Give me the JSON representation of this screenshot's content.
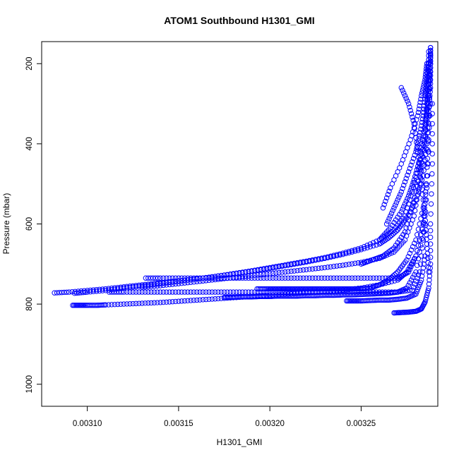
{
  "chart_data": {
    "type": "scatter",
    "title": "ATOM1 Southbound H1301_GMI",
    "xlabel": "H1301_GMI",
    "ylabel": "Pressure (mbar)",
    "xlim": [
      0.003075,
      0.003292
    ],
    "ylim": [
      1055,
      145
    ],
    "y_reversed": true,
    "x_ticks": [
      "0.00310",
      "0.00315",
      "0.00320",
      "0.00325"
    ],
    "x_tick_values": [
      0.0031,
      0.00315,
      0.0032,
      0.00325
    ],
    "y_ticks": [
      "200",
      "400",
      "600",
      "800",
      "1000"
    ],
    "y_tick_values": [
      200,
      400,
      600,
      800,
      1000
    ],
    "marker": "open-circle",
    "color": "#0000ff",
    "grid": false,
    "legend": "none",
    "series": [
      {
        "x": [
          0.003082,
          0.00309,
          0.0031,
          0.00311,
          0.00312,
          0.00313,
          0.00314,
          0.00315,
          0.00316,
          0.00317,
          0.00318,
          0.00319,
          0.0032,
          0.00321,
          0.00322,
          0.00323,
          0.00324,
          0.00325,
          0.00326,
          0.003265,
          0.00327,
          0.003275,
          0.00328,
          0.003284,
          0.003286,
          0.003287,
          0.003288,
          0.003288,
          0.003288
        ],
        "y": [
          772,
          770,
          766,
          762,
          757,
          752,
          747,
          742,
          737,
          731,
          725,
          718,
          711,
          703,
          695,
          686,
          676,
          664,
          650,
          635,
          615,
          585,
          540,
          480,
          400,
          320,
          260,
          200,
          160
        ]
      },
      {
        "x": [
          0.003093,
          0.0031,
          0.00311,
          0.00312,
          0.00313,
          0.00314,
          0.00315,
          0.00316,
          0.00317,
          0.00318,
          0.00319,
          0.0032,
          0.00321,
          0.00322,
          0.00323,
          0.00324,
          0.00325,
          0.00326,
          0.003268,
          0.003274,
          0.003278,
          0.003282,
          0.003285,
          0.003286,
          0.003287,
          0.003287
        ],
        "y": [
          773,
          770,
          766,
          760,
          755,
          749,
          743,
          737,
          731,
          724,
          717,
          709,
          701,
          693,
          684,
          673,
          660,
          640,
          615,
          580,
          520,
          450,
          380,
          300,
          230,
          170
        ]
      },
      {
        "x": [
          0.00313,
          0.00314,
          0.00315,
          0.00316,
          0.00317,
          0.00318,
          0.00319,
          0.0032,
          0.00321,
          0.00322,
          0.00323,
          0.00324,
          0.00325,
          0.00326,
          0.003268,
          0.003274,
          0.003279,
          0.003282,
          0.003285,
          0.003286,
          0.003287
        ],
        "y": [
          758,
          754,
          749,
          744,
          739,
          734,
          729,
          724,
          719,
          714,
          709,
          703,
          696,
          686,
          670,
          640,
          580,
          500,
          400,
          300,
          200
        ]
      },
      {
        "x": [
          0.003132,
          0.00314,
          0.00315,
          0.00316,
          0.00317,
          0.00318,
          0.00319,
          0.0032,
          0.00321,
          0.00322,
          0.00323,
          0.00324,
          0.00325,
          0.00326,
          0.00327,
          0.003276,
          0.00328,
          0.003284,
          0.003286,
          0.003287,
          0.003288
        ],
        "y": [
          735,
          735,
          735,
          735,
          735,
          735,
          735,
          735,
          735,
          735,
          735,
          735,
          735,
          735,
          735,
          720,
          680,
          600,
          480,
          350,
          220
        ]
      },
      {
        "x": [
          0.003092,
          0.003096,
          0.0031,
          0.003105,
          0.00311,
          0.00312,
          0.00313,
          0.00314,
          0.00315,
          0.00316,
          0.00317,
          0.00318,
          0.00319,
          0.0032,
          0.00321,
          0.00322,
          0.00323,
          0.00324,
          0.00325,
          0.00326,
          0.00327,
          0.003275,
          0.00328,
          0.003284,
          0.003286,
          0.003288
        ],
        "y": [
          803,
          803,
          803,
          803,
          802,
          800,
          798,
          796,
          793,
          790,
          787,
          784,
          781,
          778,
          775,
          772,
          769,
          765,
          760,
          752,
          740,
          720,
          680,
          600,
          480,
          300
        ]
      },
      {
        "x": [
          0.003112,
          0.00312,
          0.00313,
          0.00314,
          0.00315,
          0.00316,
          0.00317,
          0.00318,
          0.00319,
          0.0032,
          0.00321,
          0.00322,
          0.00323,
          0.00324,
          0.00325,
          0.00326,
          0.00327,
          0.003278,
          0.003282,
          0.003285,
          0.003287
        ],
        "y": [
          770,
          770,
          770,
          770,
          770,
          770,
          770,
          770,
          770,
          770,
          770,
          770,
          770,
          770,
          770,
          770,
          770,
          765,
          720,
          600,
          420
        ]
      },
      {
        "x": [
          0.003175,
          0.00318,
          0.003185,
          0.00319,
          0.003195,
          0.0032,
          0.003205,
          0.00321,
          0.003215,
          0.00322,
          0.003225,
          0.00323,
          0.003235,
          0.00324,
          0.003245,
          0.00325,
          0.003255,
          0.00326,
          0.003265,
          0.00327,
          0.003275,
          0.00328,
          0.003284,
          0.003286
        ],
        "y": [
          783,
          783,
          782,
          782,
          781,
          781,
          780,
          780,
          780,
          779,
          779,
          778,
          778,
          777,
          777,
          776,
          775,
          774,
          773,
          770,
          760,
          720,
          620,
          480
        ]
      },
      {
        "x": [
          0.003193,
          0.003198,
          0.003202,
          0.003206,
          0.00321,
          0.003214,
          0.003218,
          0.003222,
          0.003226,
          0.00323,
          0.003234,
          0.003238,
          0.003242,
          0.003246,
          0.00325,
          0.003255,
          0.00326,
          0.003265,
          0.00327,
          0.003275,
          0.00328,
          0.003284
        ],
        "y": [
          762,
          762,
          762,
          762,
          762,
          762,
          762,
          762,
          762,
          762,
          762,
          762,
          762,
          762,
          762,
          760,
          752,
          740,
          720,
          690,
          640,
          560
        ]
      },
      {
        "x": [
          0.003242,
          0.003246,
          0.00325,
          0.003255,
          0.00326,
          0.003265,
          0.00327,
          0.003275,
          0.00328,
          0.003283,
          0.003285
        ],
        "y": [
          792,
          792,
          792,
          791,
          790,
          790,
          788,
          785,
          775,
          740,
          680
        ]
      },
      {
        "x": [
          0.003268,
          0.003272,
          0.003276,
          0.00328,
          0.003283,
          0.003285,
          0.003287,
          0.003288,
          0.003288,
          0.003289,
          0.003289
        ],
        "y": [
          822,
          821,
          820,
          818,
          812,
          795,
          760,
          700,
          600,
          450,
          300
        ]
      },
      {
        "x": [
          0.00325,
          0.003256,
          0.003262,
          0.003268,
          0.003274,
          0.003278,
          0.003282,
          0.003285,
          0.003287,
          0.003288
        ],
        "y": [
          700,
          690,
          680,
          660,
          620,
          560,
          480,
          380,
          280,
          180
        ]
      },
      {
        "x": [
          0.00326,
          0.003266,
          0.003272,
          0.003276,
          0.003279,
          0.003282,
          0.003284,
          0.003286,
          0.003287,
          0.003288,
          0.003288
        ],
        "y": [
          640,
          610,
          570,
          530,
          490,
          440,
          380,
          320,
          260,
          210,
          160
        ]
      },
      {
        "x": [
          0.003264,
          0.003268,
          0.003272,
          0.003276,
          0.00328,
          0.003282,
          0.003284,
          0.003285,
          0.003286,
          0.003287
        ],
        "y": [
          600,
          560,
          520,
          470,
          420,
          380,
          330,
          280,
          240,
          190
        ]
      },
      {
        "x": [
          0.003262,
          0.003266,
          0.003272,
          0.003277,
          0.003281,
          0.003283,
          0.003285,
          0.003286
        ],
        "y": [
          560,
          510,
          450,
          390,
          330,
          280,
          240,
          200
        ]
      },
      {
        "x": [
          0.003272,
          0.003276,
          0.003279,
          0.003281,
          0.003283,
          0.003285,
          0.003286,
          0.003287
        ],
        "y": [
          260,
          300,
          350,
          420,
          500,
          580,
          650,
          720
        ]
      }
    ]
  }
}
